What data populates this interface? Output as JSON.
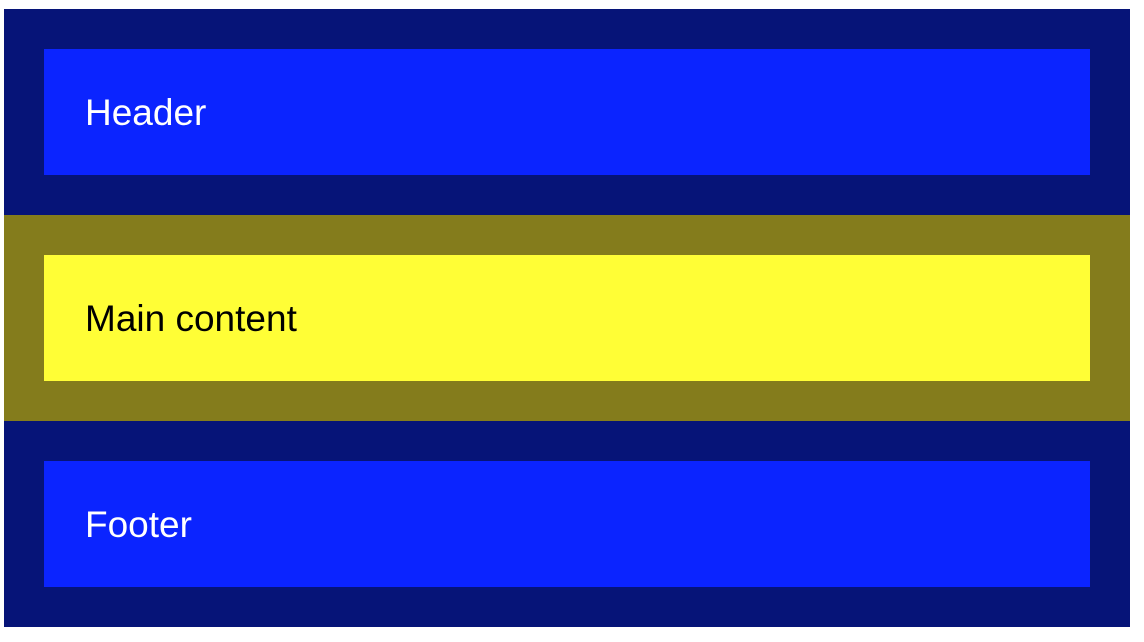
{
  "header": {
    "label": "Header"
  },
  "main": {
    "label": "Main content"
  },
  "footer": {
    "label": "Footer"
  },
  "colors": {
    "outer_blue": "#061478",
    "inner_blue": "#0b24ff",
    "outer_olive": "#847c1c",
    "inner_yellow": "#fffe36",
    "text_light": "#ffffff",
    "text_dark": "#000000"
  }
}
